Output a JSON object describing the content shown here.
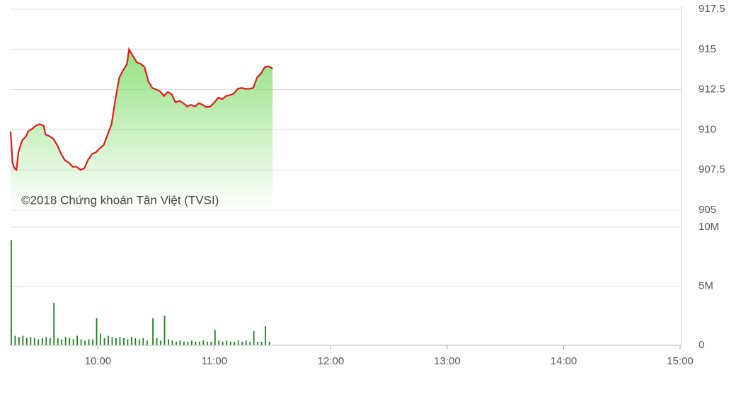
{
  "chart_data": [
    {
      "type": "line",
      "annotation": "©2018 Chứng khoán Tân Việt (TVSI)",
      "color": "#e31a1c",
      "fill": "#8ee07a",
      "grid": true,
      "x": [
        "09:15",
        "09:16",
        "09:17",
        "09:18",
        "09:19",
        "09:21",
        "09:23",
        "09:24",
        "09:26",
        "09:28",
        "09:30",
        "09:32",
        "09:33",
        "09:35",
        "09:37",
        "09:39",
        "09:41",
        "09:43",
        "09:45",
        "09:47",
        "09:49",
        "09:51",
        "09:53",
        "09:55",
        "09:57",
        "09:59",
        "10:01",
        "10:03",
        "10:05",
        "10:07",
        "10:09",
        "10:11",
        "10:13",
        "10:15",
        "10:16",
        "10:18",
        "10:20",
        "10:22",
        "10:24",
        "10:26",
        "10:28",
        "10:30",
        "10:32",
        "10:34",
        "10:36",
        "10:38",
        "10:40",
        "10:42",
        "10:44",
        "10:46",
        "10:48",
        "10:50",
        "10:52",
        "10:54",
        "10:56",
        "10:58",
        "11:00",
        "11:02",
        "11:04",
        "11:06",
        "11:08",
        "11:10",
        "11:12",
        "11:14",
        "11:16",
        "11:18",
        "11:20",
        "11:22",
        "11:24",
        "11:26",
        "11:28",
        "11:30"
      ],
      "values": [
        909.9,
        907.95,
        907.6,
        907.5,
        908.6,
        909.35,
        909.6,
        909.9,
        910.05,
        910.25,
        910.35,
        910.25,
        909.7,
        909.6,
        909.45,
        909.05,
        908.5,
        908.1,
        907.95,
        907.7,
        907.7,
        907.5,
        907.6,
        908.15,
        908.5,
        908.6,
        908.85,
        909.05,
        909.7,
        910.35,
        911.9,
        913.25,
        913.7,
        914.1,
        915.0,
        914.6,
        914.2,
        914.1,
        913.9,
        913.0,
        912.6,
        912.5,
        912.4,
        912.1,
        912.35,
        912.2,
        911.7,
        911.8,
        911.65,
        911.45,
        911.55,
        911.45,
        911.65,
        911.55,
        911.4,
        911.45,
        911.7,
        912.0,
        911.9,
        912.1,
        912.15,
        912.25,
        912.55,
        912.6,
        912.55,
        912.55,
        912.6,
        913.25,
        913.5,
        913.9,
        913.95,
        913.8
      ],
      "xlim": [
        "09:15",
        "15:00"
      ],
      "ylim": [
        905,
        917.5
      ],
      "yticks": [
        905,
        907.5,
        910,
        912.5,
        915,
        917.5
      ]
    },
    {
      "type": "bar",
      "color": "#1e7e1e",
      "grid": true,
      "x": [
        "09:15",
        "09:17",
        "09:19",
        "09:21",
        "09:23",
        "09:25",
        "09:27",
        "09:29",
        "09:31",
        "09:33",
        "09:35",
        "09:37",
        "09:39",
        "09:41",
        "09:43",
        "09:45",
        "09:47",
        "09:49",
        "09:51",
        "09:53",
        "09:55",
        "09:57",
        "09:59",
        "10:01",
        "10:03",
        "10:05",
        "10:07",
        "10:09",
        "10:11",
        "10:13",
        "10:15",
        "10:17",
        "10:19",
        "10:21",
        "10:23",
        "10:25",
        "10:28",
        "10:30",
        "10:32",
        "10:34",
        "10:36",
        "10:38",
        "10:40",
        "10:42",
        "10:44",
        "10:46",
        "10:48",
        "10:50",
        "10:52",
        "10:54",
        "10:56",
        "10:58",
        "11:00",
        "11:02",
        "11:04",
        "11:06",
        "11:08",
        "11:10",
        "11:12",
        "11:14",
        "11:16",
        "11:18",
        "11:20",
        "11:22",
        "11:24",
        "11:26",
        "11:28"
      ],
      "values": [
        8.9,
        0.8,
        0.7,
        0.8,
        0.6,
        0.7,
        0.6,
        0.5,
        0.6,
        0.7,
        0.6,
        3.6,
        0.6,
        0.5,
        0.7,
        0.6,
        0.5,
        0.8,
        0.5,
        0.4,
        0.5,
        0.5,
        2.3,
        1.0,
        0.6,
        0.8,
        0.7,
        0.6,
        0.7,
        0.6,
        0.5,
        0.7,
        0.6,
        0.5,
        0.6,
        0.4,
        2.3,
        0.6,
        0.4,
        2.5,
        0.5,
        0.4,
        0.3,
        0.4,
        0.3,
        0.3,
        0.4,
        0.3,
        0.3,
        0.4,
        0.3,
        0.3,
        1.3,
        0.4,
        0.3,
        0.4,
        0.3,
        0.3,
        0.4,
        0.3,
        0.4,
        0.3,
        1.2,
        0.3,
        0.3,
        1.6,
        0.3
      ],
      "xlim": [
        "09:15",
        "15:00"
      ],
      "ylim": [
        0,
        10
      ],
      "yticks": [
        {
          "value": 0,
          "label": "0"
        },
        {
          "value": 5,
          "label": "5M"
        },
        {
          "value": 10,
          "label": "10M"
        }
      ],
      "xticks": [
        "10:00",
        "11:00",
        "12:00",
        "13:00",
        "14:00",
        "15:00"
      ]
    }
  ]
}
